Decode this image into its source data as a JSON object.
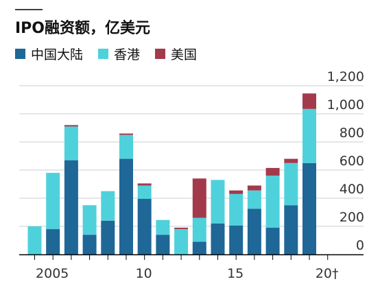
{
  "chart_data": {
    "type": "bar",
    "stacked": true,
    "title": "IPO融资额，亿美元",
    "x": [
      2004,
      2005,
      2006,
      2007,
      2008,
      2009,
      2010,
      2011,
      2012,
      2013,
      2014,
      2015,
      2016,
      2017,
      2018,
      2019,
      2020
    ],
    "x_ticks": [
      2005,
      2010,
      2015,
      2020
    ],
    "x_tick_labels": [
      "2005",
      "10",
      "15",
      "20†"
    ],
    "y_ticks": [
      0,
      200,
      400,
      600,
      800,
      1000,
      1200
    ],
    "y_tick_labels": [
      "0",
      "200",
      "400",
      "600",
      "800",
      "1,000",
      "1,200"
    ],
    "ylim": [
      0,
      1200
    ],
    "legend_position": "top-left",
    "grid": true,
    "series": [
      {
        "name": "中国大陆",
        "color": "#1f6797",
        "values": [
          0,
          180,
          670,
          140,
          240,
          680,
          395,
          140,
          0,
          90,
          220,
          205,
          325,
          190,
          350,
          650,
          0
        ]
      },
      {
        "name": "香港",
        "color": "#4fd1dc",
        "values": [
          200,
          400,
          240,
          210,
          210,
          170,
          95,
          105,
          180,
          170,
          310,
          225,
          130,
          370,
          300,
          385,
          0
        ]
      },
      {
        "name": "美国",
        "color": "#a33a4c",
        "values": [
          0,
          0,
          10,
          0,
          0,
          10,
          15,
          0,
          10,
          280,
          0,
          25,
          35,
          55,
          30,
          110,
          0
        ]
      }
    ]
  }
}
